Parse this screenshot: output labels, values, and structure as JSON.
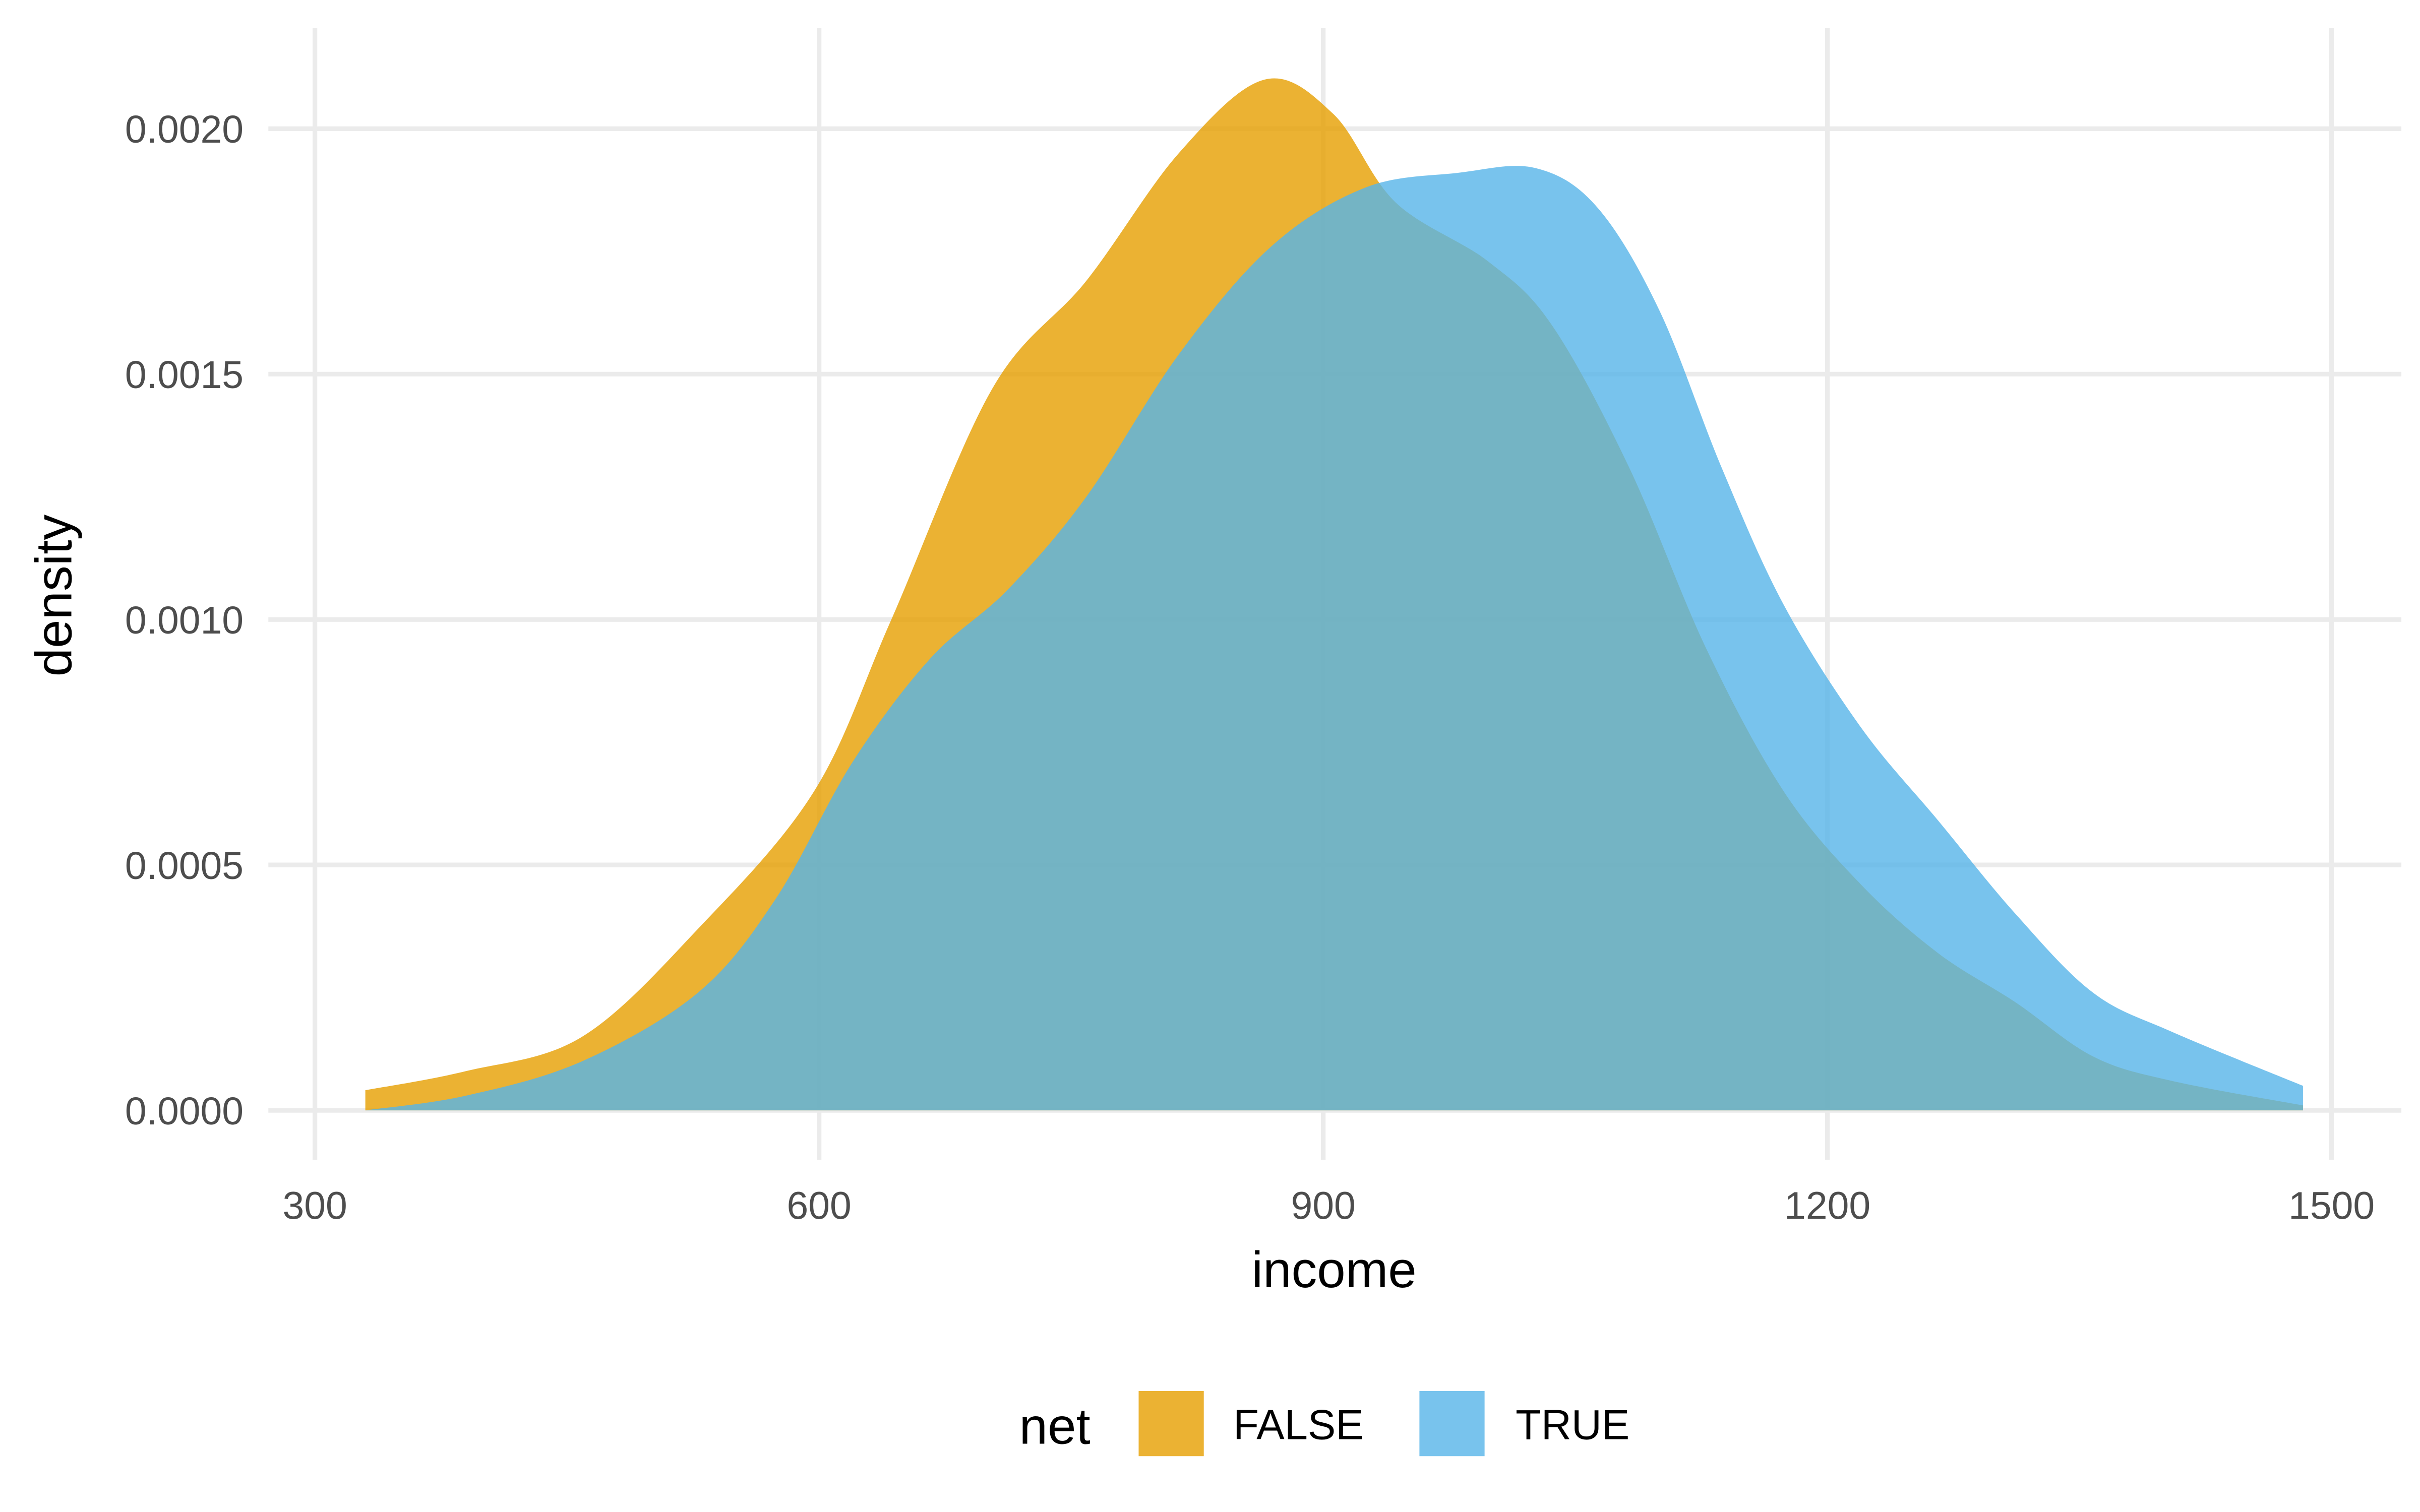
{
  "chart_data": {
    "type": "area",
    "subtype": "density",
    "title": "",
    "xlabel": "income",
    "ylabel": "density",
    "xlim": [
      280,
      1530
    ],
    "ylim": [
      -0.0001,
      0.0022
    ],
    "x_ticks": [
      "300",
      "600",
      "900",
      "1200",
      "1500"
    ],
    "x_tick_values": [
      300,
      600,
      900,
      1200,
      1500
    ],
    "y_ticks": [
      "0.0000",
      "0.0005",
      "0.0010",
      "0.0015",
      "0.0020"
    ],
    "y_tick_values": [
      0,
      0.0005,
      0.001,
      0.0015,
      0.002
    ],
    "grid": true,
    "legend": {
      "title": "net",
      "position": "bottom",
      "entries": [
        "FALSE",
        "TRUE"
      ]
    },
    "fill_opacity": 0.8,
    "series": [
      {
        "name": "FALSE",
        "color": "#E69F00",
        "x": [
          330,
          390,
          459,
          528,
          597,
          643,
          703,
          759,
          814,
          865,
          906,
          943,
          998,
          1036,
          1082,
          1128,
          1174,
          1220,
          1266,
          1312,
          1358,
          1405,
          1483
        ],
        "y": [
          4.1e-05,
          8e-05,
          0.00015,
          0.00037,
          0.00065,
          0.001,
          0.00147,
          0.00169,
          0.00195,
          0.0021,
          0.00203,
          0.00185,
          0.00173,
          0.0016,
          0.00131,
          0.00094,
          0.00065,
          0.00046,
          0.00032,
          0.00022,
          0.00011,
          6e-05,
          1e-05
        ]
      },
      {
        "name": "TRUE",
        "color": "#56B4E9",
        "x": [
          330,
          390,
          459,
          528,
          574,
          620,
          666,
          712,
          759,
          814,
          869,
          925,
          980,
          1026,
          1063,
          1100,
          1137,
          1174,
          1220,
          1266,
          1312,
          1358,
          1405,
          1483
        ],
        "y": [
          0.0,
          3e-05,
          0.0001,
          0.00024,
          0.00043,
          0.00071,
          0.00092,
          0.00106,
          0.00125,
          0.00154,
          0.00176,
          0.00188,
          0.00191,
          0.00192,
          0.00184,
          0.00163,
          0.00131,
          0.00103,
          0.00078,
          0.00059,
          0.0004,
          0.00024,
          0.00016,
          5e-05
        ]
      }
    ]
  }
}
